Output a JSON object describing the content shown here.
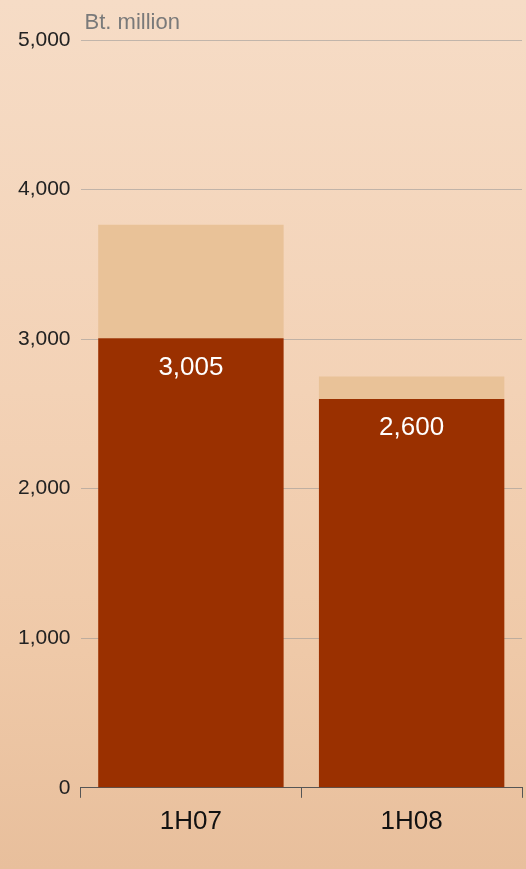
{
  "chart_data": {
    "type": "bar",
    "stacked": true,
    "ylabel": "Bt. million",
    "categories": [
      "1H07",
      "1H08"
    ],
    "series": [
      {
        "color": "#9a3000",
        "values": [
          3005,
          2600
        ],
        "data_labels": true,
        "value_labels": [
          "3,005",
          "2,600"
        ]
      },
      {
        "color": "#e9c298",
        "values": [
          760,
          150
        ]
      }
    ],
    "ylim": [
      0,
      5000
    ],
    "yticks": [
      0,
      {
        "value": 1000,
        "label": "1,000"
      },
      {
        "value": 2000,
        "label": "2,000"
      },
      {
        "value": 3000,
        "label": "3,000"
      },
      {
        "value": 4000,
        "label": "4,000"
      },
      {
        "value": 5000,
        "label": "5,000"
      }
    ],
    "grid": true
  }
}
